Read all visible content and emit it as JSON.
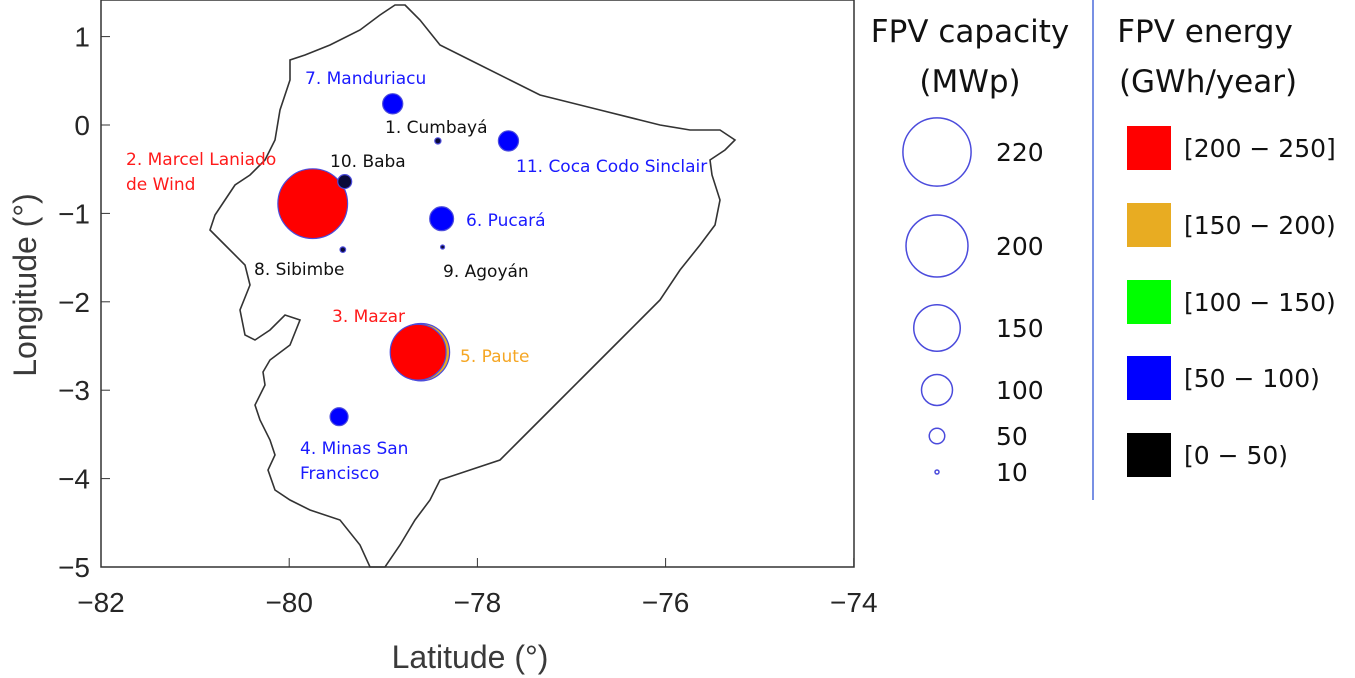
{
  "chart_data": {
    "type": "scatter",
    "xlabel": "Latitude (°)",
    "ylabel": "Longitude (°)",
    "xlim": [
      -82,
      -74
    ],
    "ylim": [
      -5,
      1.4
    ],
    "xticks": [
      "−82",
      "−80",
      "−78",
      "−76",
      "−74"
    ],
    "yticks": [
      "1",
      "0",
      "−1",
      "−2",
      "−3",
      "−4",
      "−5"
    ],
    "points": [
      {
        "label": "7. Manduriacu",
        "x": -78.9,
        "y": 0.24,
        "capacity": 65,
        "energy_class": 3,
        "label_color": "#1a1aff"
      },
      {
        "label": "1. Cumbayá",
        "x": -78.42,
        "y": -0.18,
        "capacity": 20,
        "energy_class": 4,
        "label_color": "#111111"
      },
      {
        "label": "11. Coca Codo Sinclair",
        "x": -77.67,
        "y": -0.18,
        "capacity": 65,
        "energy_class": 3,
        "label_color": "#1a1aff"
      },
      {
        "label": "2. Marcel Laniado de Wind",
        "x": -79.75,
        "y": -0.89,
        "capacity": 225,
        "energy_class": 0,
        "label_color": "#ff1a1a"
      },
      {
        "label": "10. Baba",
        "x": -79.41,
        "y": -0.64,
        "capacity": 45,
        "energy_class": 4,
        "label_color": "#111111"
      },
      {
        "label": "6. Pucará",
        "x": -78.38,
        "y": -1.06,
        "capacity": 77,
        "energy_class": 3,
        "label_color": "#1a1aff"
      },
      {
        "label": "8. Sibimbe",
        "x": -79.43,
        "y": -1.41,
        "capacity": 18,
        "energy_class": 4,
        "label_color": "#111111"
      },
      {
        "label": "9. Agoyán",
        "x": -78.37,
        "y": -1.38,
        "capacity": 12,
        "energy_class": 4,
        "label_color": "#111111"
      },
      {
        "label": "5. Paute",
        "x": -78.6,
        "y": -2.57,
        "capacity": 185,
        "energy_class": 1,
        "label_color": "#f5a623"
      },
      {
        "label": "3. Mazar",
        "x": -78.63,
        "y": -2.57,
        "capacity": 180,
        "energy_class": 0,
        "label_color": "#ff1a1a"
      },
      {
        "label": "4. Minas San Francisco",
        "x": -79.47,
        "y": -3.3,
        "capacity": 58,
        "energy_class": 3,
        "label_color": "#1a1aff"
      }
    ],
    "capacity_legend": {
      "title": [
        "FPV capacity",
        "(MWp)"
      ],
      "values": [
        220,
        200,
        150,
        100,
        50,
        10
      ]
    },
    "energy_legend": {
      "title": [
        "FPV energy",
        "(GWh/year)"
      ],
      "classes": [
        {
          "label": "[200 − 250]",
          "color": "#ff0000"
        },
        {
          "label": "[150 − 200)",
          "color": "#e8ac22"
        },
        {
          "label": "[100 − 150)",
          "color": "#00ff00"
        },
        {
          "label": "[50 − 100)",
          "color": "#0000ff"
        },
        {
          "label": "[0 − 50)",
          "color": "#000000"
        }
      ]
    },
    "edge_color": "#4b4bdc"
  }
}
